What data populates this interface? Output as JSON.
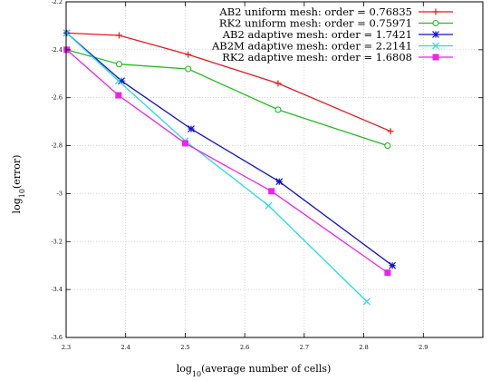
{
  "chart_data": {
    "type": "line",
    "title": "",
    "xlabel": "log10(average number of cells)",
    "ylabel": "log10(error)",
    "xlim": [
      2.3,
      3.0
    ],
    "ylim": [
      -3.6,
      -2.2
    ],
    "x_ticks": [
      2.3,
      2.4,
      2.5,
      2.6,
      2.7,
      2.8,
      2.9
    ],
    "x_tick_labels": [
      "2.3",
      "2.4",
      "2.5",
      "2.6",
      "2.7",
      "2.8",
      "2.9"
    ],
    "y_ticks": [
      -2.2,
      -2.4,
      -2.6,
      -2.8,
      -3.0,
      -3.2,
      -3.4,
      -3.6
    ],
    "y_tick_labels": [
      "-2.2",
      "-2.4",
      "-2.6",
      "-2.8",
      "-3",
      "-3.2",
      "-3.4",
      "-3.6"
    ],
    "grid": true,
    "legend_position": "top-right",
    "series": [
      {
        "name": "AB2 uniform mesh: order = 0.76835",
        "color": "#e41a1c",
        "marker": "plus",
        "x": [
          2.301,
          2.389,
          2.505,
          2.656,
          2.845
        ],
        "y": [
          -2.33,
          -2.34,
          -2.42,
          -2.54,
          -2.74
        ]
      },
      {
        "name": "RK2 uniform mesh: order = 0.75971",
        "color": "#22bb22",
        "marker": "circle",
        "x": [
          2.301,
          2.389,
          2.505,
          2.656,
          2.84
        ],
        "y": [
          -2.4,
          -2.46,
          -2.48,
          -2.65,
          -2.8
        ]
      },
      {
        "name": "AB2 adaptive mesh: order = 1.7421",
        "color": "#1111cc",
        "marker": "star",
        "x": [
          2.301,
          2.393,
          2.51,
          2.658,
          2.848
        ],
        "y": [
          -2.33,
          -2.53,
          -2.73,
          -2.95,
          -3.3
        ]
      },
      {
        "name": "AB2M adaptive mesh: order = 2.2141",
        "color": "#22dddd",
        "marker": "cross",
        "x": [
          2.301,
          2.388,
          2.5,
          2.64,
          2.805
        ],
        "y": [
          -2.33,
          -2.53,
          -2.78,
          -3.05,
          -3.45
        ]
      },
      {
        "name": "RK2 adaptive mesh: order = 1.6808",
        "color": "#ee22ee",
        "marker": "square",
        "x": [
          2.301,
          2.388,
          2.5,
          2.645,
          2.84
        ],
        "y": [
          -2.4,
          -2.59,
          -2.79,
          -2.99,
          -3.33
        ]
      }
    ]
  }
}
